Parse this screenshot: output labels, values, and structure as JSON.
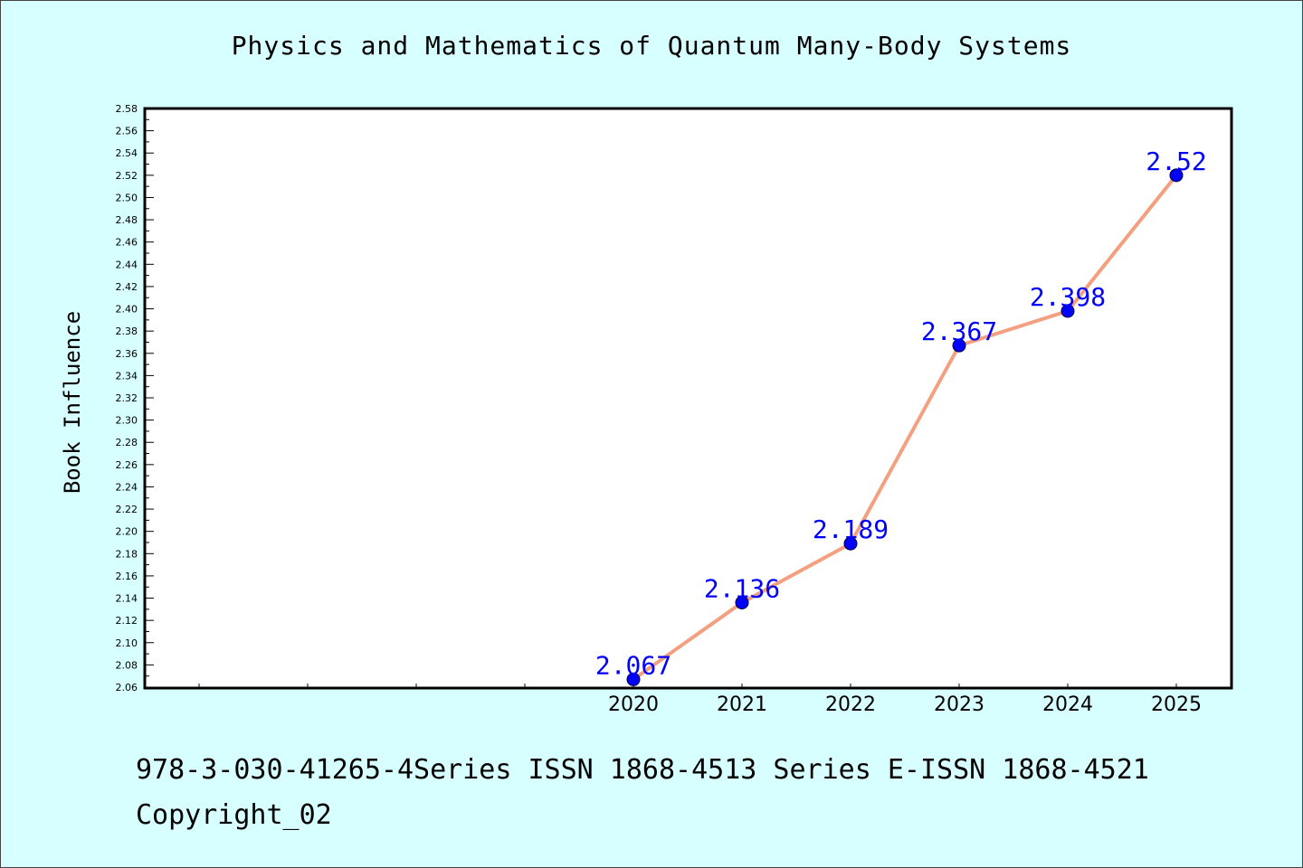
{
  "chart_data": {
    "type": "line",
    "title": "Physics and Mathematics of Quantum Many-Body Systems",
    "xlabel": "",
    "ylabel": "Book Influence",
    "x_ticks": [
      "",
      "",
      "",
      "",
      "2020",
      "2021",
      "2022",
      "2023",
      "2024",
      "2025"
    ],
    "categories": [
      "2020",
      "2021",
      "2022",
      "2023",
      "2024",
      "2025"
    ],
    "series": [
      {
        "values": [
          2.067,
          2.136,
          2.189,
          2.367,
          2.398,
          2.52
        ],
        "data_labels": [
          "2.067",
          "2.136",
          "2.189",
          "2.367",
          "2.398",
          "2.52"
        ]
      }
    ],
    "ylim": [
      2.06,
      2.58
    ],
    "y_tick_step": 0.02,
    "grid": false,
    "legend": "none",
    "colors": {
      "background": "#d8ffff",
      "plot_area": "#ffffff",
      "line": "#f4a080",
      "marker": "#0000ff",
      "data_label": "#0000ff"
    }
  },
  "footer": {
    "isbn_line": "978-3-030-41265-4Series ISSN 1868-4513 Series E-ISSN 1868-4521",
    "copyright": "Copyright_02"
  }
}
